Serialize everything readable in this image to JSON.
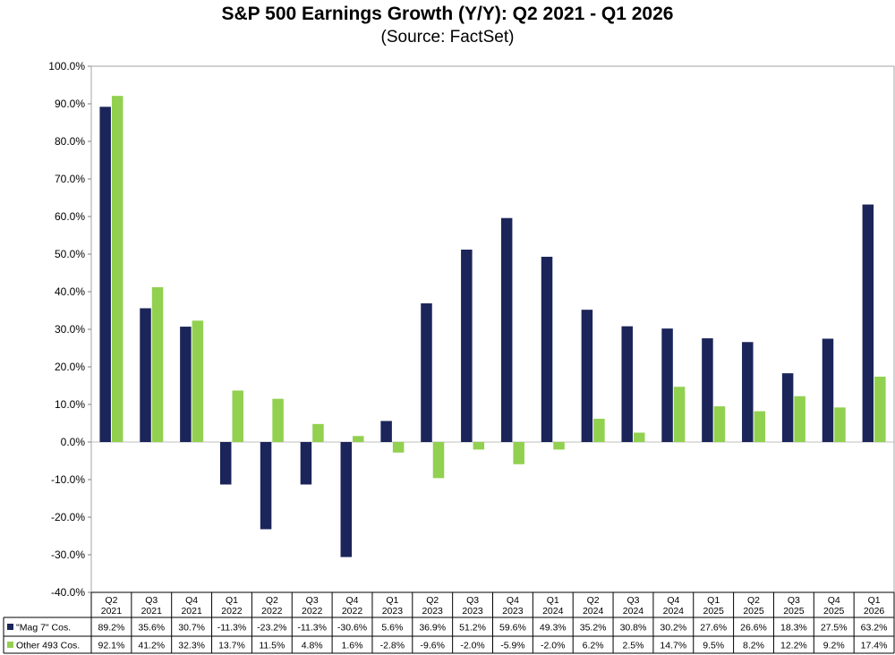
{
  "chart_data": {
    "type": "bar",
    "title": "S&P 500 Earnings Growth (Y/Y): Q2 2021 - Q1 2026",
    "subtitle": "(Source: FactSet)",
    "categories": [
      "Q2 2021",
      "Q3 2021",
      "Q4 2021",
      "Q1 2022",
      "Q2 2022",
      "Q3 2022",
      "Q4 2022",
      "Q1 2023",
      "Q2 2023",
      "Q3 2023",
      "Q4 2023",
      "Q1 2024",
      "Q2 2024",
      "Q3 2024",
      "Q4 2024",
      "Q1 2025",
      "Q2 2025",
      "Q3 2025",
      "Q4 2025",
      "Q1 2026"
    ],
    "category_lines": [
      [
        "Q2",
        "2021"
      ],
      [
        "Q3",
        "2021"
      ],
      [
        "Q4",
        "2021"
      ],
      [
        "Q1",
        "2022"
      ],
      [
        "Q2",
        "2022"
      ],
      [
        "Q3",
        "2022"
      ],
      [
        "Q4",
        "2022"
      ],
      [
        "Q1",
        "2023"
      ],
      [
        "Q2",
        "2023"
      ],
      [
        "Q3",
        "2023"
      ],
      [
        "Q4",
        "2023"
      ],
      [
        "Q1",
        "2024"
      ],
      [
        "Q2",
        "2024"
      ],
      [
        "Q3",
        "2024"
      ],
      [
        "Q4",
        "2024"
      ],
      [
        "Q1",
        "2025"
      ],
      [
        "Q2",
        "2025"
      ],
      [
        "Q3",
        "2025"
      ],
      [
        "Q4",
        "2025"
      ],
      [
        "Q1",
        "2026"
      ]
    ],
    "series": [
      {
        "name": "\"Mag 7\" Cos.",
        "color": "#1b2559",
        "values": [
          89.2,
          35.6,
          30.7,
          -11.3,
          -23.2,
          -11.3,
          -30.6,
          5.6,
          36.9,
          51.2,
          59.6,
          49.3,
          35.2,
          30.8,
          30.2,
          27.6,
          26.6,
          18.3,
          27.5,
          63.2
        ],
        "labels": [
          "89.2%",
          "35.6%",
          "30.7%",
          "-11.3%",
          "-23.2%",
          "-11.3%",
          "-30.6%",
          "5.6%",
          "36.9%",
          "51.2%",
          "59.6%",
          "49.3%",
          "35.2%",
          "30.8%",
          "30.2%",
          "27.6%",
          "26.6%",
          "18.3%",
          "27.5%",
          "63.2%"
        ]
      },
      {
        "name": "Other 493 Cos.",
        "color": "#92d050",
        "values": [
          92.1,
          41.2,
          32.3,
          13.7,
          11.5,
          4.8,
          1.6,
          -2.8,
          -9.6,
          -2.0,
          -5.9,
          -2.0,
          6.2,
          2.5,
          14.7,
          9.5,
          8.2,
          12.2,
          9.2,
          17.4
        ],
        "labels": [
          "92.1%",
          "41.2%",
          "32.3%",
          "13.7%",
          "11.5%",
          "4.8%",
          "1.6%",
          "-2.8%",
          "-9.6%",
          "-2.0%",
          "-5.9%",
          "-2.0%",
          "6.2%",
          "2.5%",
          "14.7%",
          "9.5%",
          "8.2%",
          "12.2%",
          "9.2%",
          "17.4%"
        ]
      }
    ],
    "ylim": [
      -40,
      100
    ],
    "y_ticks": [
      100,
      90,
      80,
      70,
      60,
      50,
      40,
      30,
      20,
      10,
      0,
      -10,
      -20,
      -30,
      -40
    ],
    "y_tick_labels": [
      "100.0%",
      "90.0%",
      "80.0%",
      "70.0%",
      "60.0%",
      "50.0%",
      "40.0%",
      "30.0%",
      "20.0%",
      "10.0%",
      "0.0%",
      "-10.0%",
      "-20.0%",
      "-30.0%",
      "-40.0%"
    ],
    "grid": false,
    "legend": "data table below chart"
  }
}
